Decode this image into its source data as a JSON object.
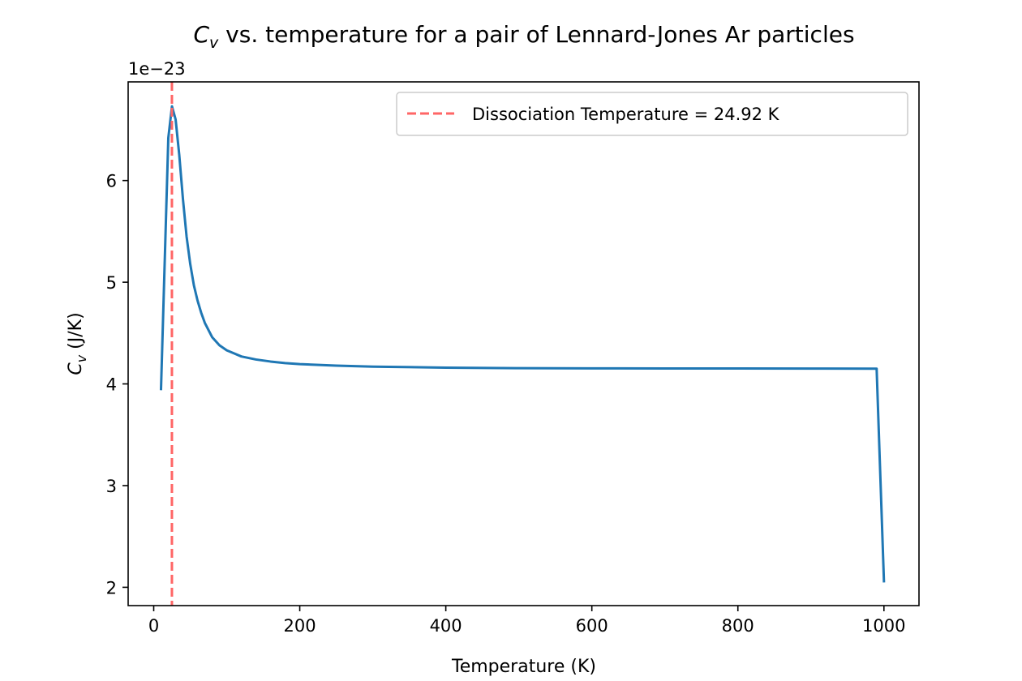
{
  "chart_data": {
    "type": "line",
    "title_main": "C",
    "title_sub": "v",
    "title_rest": " vs. temperature for a pair of Lennard-Jones Ar particles",
    "xlabel": "Temperature (K)",
    "ylabel_main": "C",
    "ylabel_sub": "v",
    "ylabel_rest": " (J/K)",
    "y_offset_label": "1e−23",
    "xlim": [
      -35,
      1048
    ],
    "ylim": [
      1.82,
      6.97
    ],
    "x_ticks": [
      0,
      200,
      400,
      600,
      800,
      1000
    ],
    "x_tick_labels": [
      "0",
      "200",
      "400",
      "600",
      "800",
      "1000"
    ],
    "y_ticks": [
      2,
      3,
      4,
      5,
      6
    ],
    "y_tick_labels": [
      "2",
      "3",
      "4",
      "5",
      "6"
    ],
    "grid": false,
    "legend_position": "top-right",
    "series": [
      {
        "color": "#1f77b4",
        "x": [
          10,
          20,
          25,
          30,
          35,
          40,
          45,
          50,
          55,
          60,
          65,
          70,
          80,
          90,
          100,
          110,
          120,
          140,
          160,
          180,
          200,
          250,
          300,
          400,
          500,
          600,
          700,
          800,
          900,
          990,
          1000
        ],
        "y": [
          3.95,
          6.42,
          6.73,
          6.6,
          6.25,
          5.82,
          5.45,
          5.18,
          4.97,
          4.82,
          4.7,
          4.6,
          4.46,
          4.38,
          4.33,
          4.3,
          4.27,
          4.24,
          4.22,
          4.205,
          4.195,
          4.18,
          4.17,
          4.16,
          4.155,
          4.153,
          4.152,
          4.152,
          4.151,
          4.15,
          2.06
        ]
      }
    ],
    "vlines": [
      {
        "name": "Dissociation Temperature = 24.92 K",
        "x": 24.92,
        "color": "#ff6666",
        "style": "dashed"
      }
    ]
  }
}
